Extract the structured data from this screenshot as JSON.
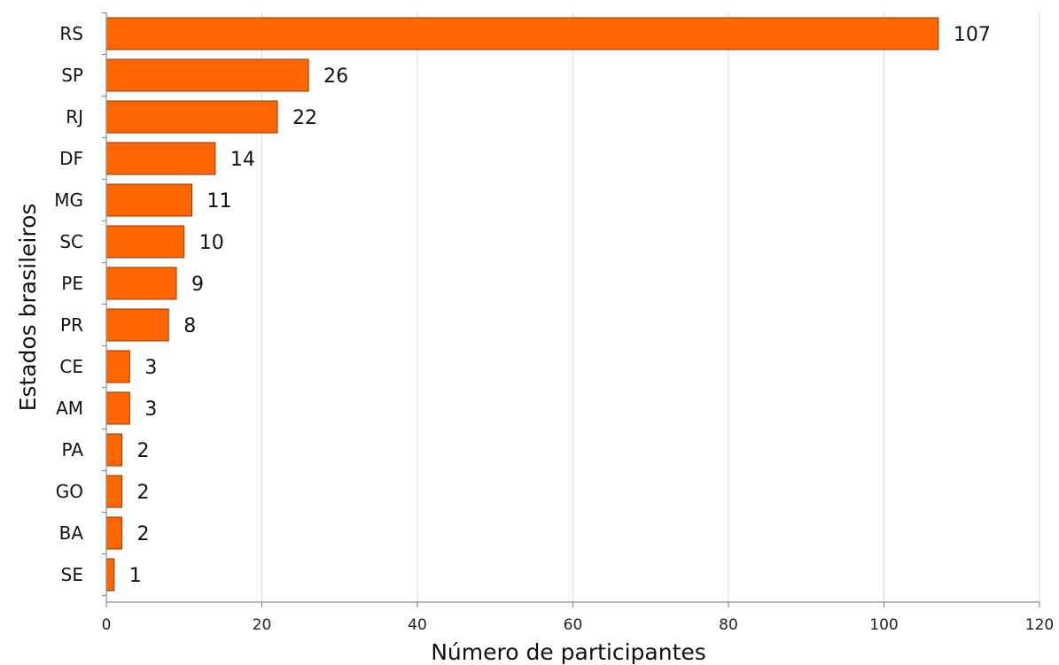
{
  "chart_data": {
    "type": "bar",
    "orientation": "horizontal",
    "categories": [
      "RS",
      "SP",
      "RJ",
      "DF",
      "MG",
      "SC",
      "PE",
      "PR",
      "CE",
      "AM",
      "PA",
      "GO",
      "BA",
      "SE"
    ],
    "values": [
      107,
      26,
      22,
      14,
      11,
      10,
      9,
      8,
      3,
      3,
      2,
      2,
      2,
      1
    ],
    "xlabel": "Número de participantes",
    "ylabel": "Estados brasileiros",
    "xlim": [
      0,
      120
    ],
    "xticks": [
      0,
      20,
      40,
      60,
      80,
      100,
      120
    ],
    "grid": true,
    "data_labels": true,
    "bar_color": "#FF6600",
    "bar_edge_color": "#8C3A0A",
    "grid_color": "#D9D9D9",
    "axis_color": "#8C8C8C"
  }
}
